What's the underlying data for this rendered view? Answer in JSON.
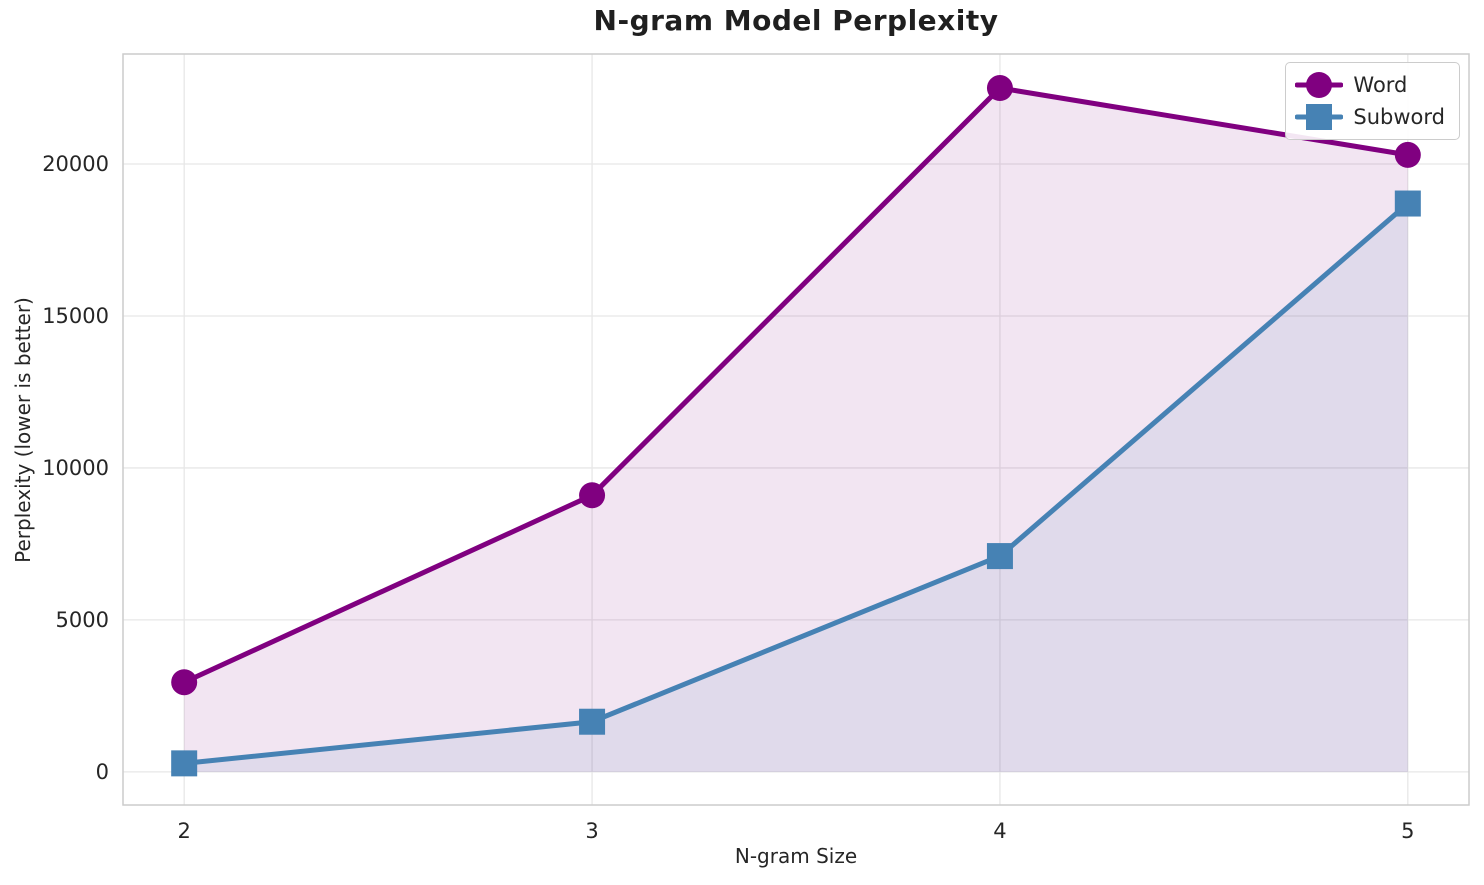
{
  "chart_data": {
    "type": "line",
    "title": "N-gram Model Perplexity",
    "xlabel": "N-gram Size",
    "ylabel": "Perplexity (lower is better)",
    "x": [
      2,
      3,
      4,
      5
    ],
    "xtick_labels": [
      "2",
      "3",
      "4",
      "5"
    ],
    "yticks": [
      0,
      5000,
      10000,
      15000,
      20000
    ],
    "ytick_labels": [
      "0",
      "5000",
      "10000",
      "15000",
      "20000"
    ],
    "xlim": [
      1.85,
      5.15
    ],
    "ylim": [
      -1090,
      23620
    ],
    "grid": true,
    "legend_position": "upper right",
    "fill_to_baseline": 0,
    "series": [
      {
        "name": "Word",
        "marker": "circle",
        "color": "#800080",
        "fill_alpha": 0.1,
        "values": [
          2950,
          9100,
          22500,
          20300
        ]
      },
      {
        "name": "Subword",
        "marker": "square",
        "color": "#4682B4",
        "fill_alpha": 0.1,
        "values": [
          280,
          1650,
          7100,
          18700
        ]
      }
    ]
  },
  "colors": {
    "text": "#262626",
    "title": "#1f1f1f",
    "grid": "#e7e7e7",
    "spine": "#cccccc",
    "background": "#ffffff"
  }
}
